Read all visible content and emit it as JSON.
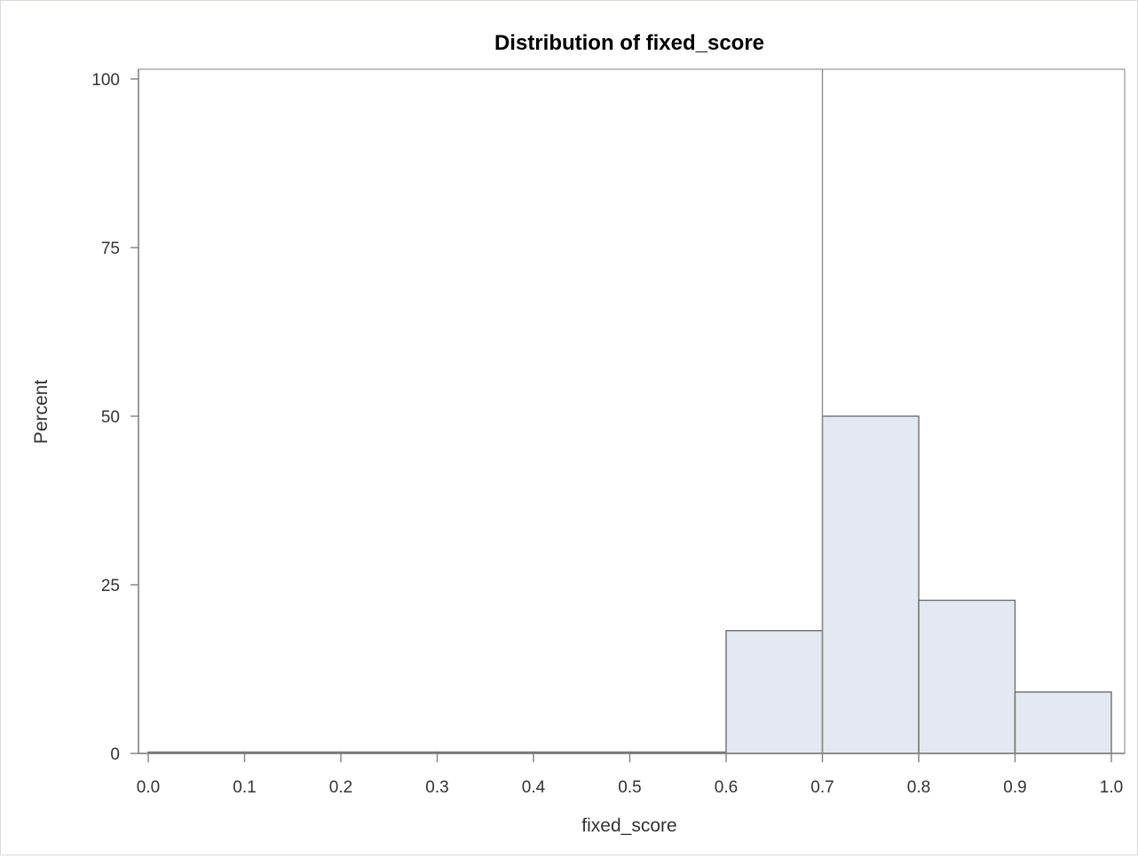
{
  "chart_data": {
    "type": "bar",
    "title": "Distribution of fixed_score",
    "xlabel": "fixed_score",
    "ylabel": "Percent",
    "xlim": [
      0.0,
      1.0
    ],
    "ylim": [
      0,
      100
    ],
    "x_ticks": [
      "0.0",
      "0.1",
      "0.2",
      "0.3",
      "0.4",
      "0.5",
      "0.6",
      "0.7",
      "0.8",
      "0.9",
      "1.0"
    ],
    "x_tick_values": [
      0.0,
      0.1,
      0.2,
      0.3,
      0.4,
      0.5,
      0.6,
      0.7,
      0.8,
      0.9,
      1.0
    ],
    "y_ticks": [
      "0",
      "25",
      "50",
      "75",
      "100"
    ],
    "y_tick_values": [
      0,
      25,
      50,
      75,
      100
    ],
    "bins": [
      {
        "start": 0.0,
        "end": 0.1,
        "percent": 0
      },
      {
        "start": 0.1,
        "end": 0.2,
        "percent": 0
      },
      {
        "start": 0.2,
        "end": 0.3,
        "percent": 0
      },
      {
        "start": 0.3,
        "end": 0.4,
        "percent": 0
      },
      {
        "start": 0.4,
        "end": 0.5,
        "percent": 0
      },
      {
        "start": 0.5,
        "end": 0.6,
        "percent": 0
      },
      {
        "start": 0.6,
        "end": 0.7,
        "percent": 18.2
      },
      {
        "start": 0.7,
        "end": 0.8,
        "percent": 50.0
      },
      {
        "start": 0.8,
        "end": 0.9,
        "percent": 22.7
      },
      {
        "start": 0.9,
        "end": 1.0,
        "percent": 9.1
      }
    ],
    "reference_line_x": 0.7,
    "grid": false,
    "colors": {
      "bar_fill": "#e3e8f1",
      "bar_stroke": "#6f6f6f"
    }
  }
}
